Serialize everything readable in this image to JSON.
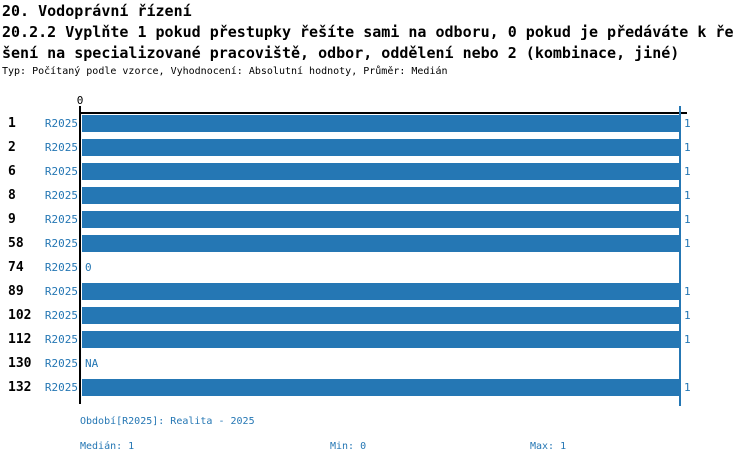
{
  "accent_color": "#2577b4",
  "header": {
    "title": "20. Vodoprávní řízení",
    "question_line1": "20.2.2 Vyplňte 1 pokud přestupky řešíte sami na odboru, 0 pokud je předáváte k ře",
    "question_line2": "šení na specializované pracoviště, odbor, oddělení nebo 2 (kombinace, jiné)",
    "meta": "Typ: Počítaný podle vzorce, Vyhodnocení: Absolutní hodnoty, Průměr: Medián"
  },
  "chart_data": {
    "type": "bar",
    "orientation": "horizontal",
    "title": "",
    "xlabel": "",
    "ylabel": "",
    "xlim": [
      0,
      1
    ],
    "axis_tick_labels": [
      "0"
    ],
    "grid": "right edge line at max value 1",
    "series_label": "R2025",
    "categories": [
      "1",
      "2",
      "6",
      "8",
      "9",
      "58",
      "74",
      "89",
      "102",
      "112",
      "130",
      "132"
    ],
    "values": [
      1,
      1,
      1,
      1,
      1,
      1,
      0,
      1,
      1,
      1,
      null,
      1
    ],
    "value_labels": [
      "1",
      "1",
      "1",
      "1",
      "1",
      "1",
      "0",
      "1",
      "1",
      "1",
      "NA",
      "1"
    ],
    "bar_color": "#2577b4",
    "stats": {
      "median": 1,
      "min": 0,
      "max": 1
    }
  },
  "footer": {
    "period": "Období[R2025]: Realita - 2025",
    "median": "Medián: 1",
    "min": "Min: 0",
    "max": "Max: 1"
  }
}
